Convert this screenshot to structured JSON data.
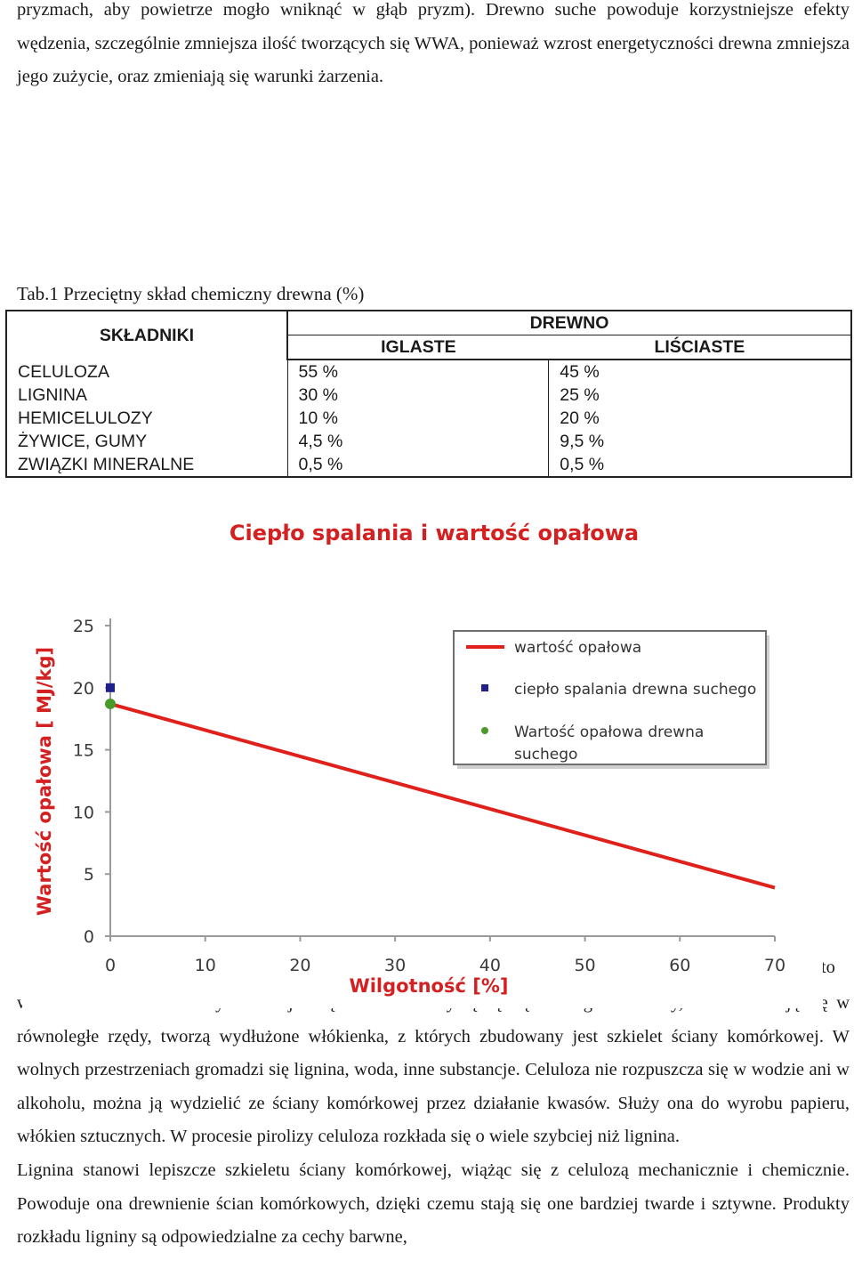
{
  "text": {
    "top_paragraph": "pryzmach, aby powietrze mogło wniknąć w głąb pryzm). Drewno suche powoduje korzystniejsze efekty wędzenia, szczególnie zmniejsza ilość tworzących się WWA, ponieważ wzrost energetyczności drewna zmniejsza jego zużycie, oraz zmieniają się warunki żarzenia.",
    "bottom_paragraph_1": "wielocukier o budowie krystalicznej. Cząsteczki celulozy łączą się w długie łańcuchy, które układają się w równoległe rzędy, tworzą wydłużone włókienka, z których zbudowany jest szkielet ściany komórkowej. W wolnych przestrzeniach gromadzi się lignina, woda, inne substancje. Celuloza nie rozpuszcza się w wodzie ani w alkoholu, można ją wydzielić ze ściany komórkowej przez działanie kwasów. Służy ona do wyrobu papieru, włókien sztucznych. W procesie pirolizy celuloza rozkłada się o wiele szybciej niż lignina.",
    "bottom_paragraph_2": "Lignina stanowi lepiszcze szkieletu ściany komórkowej, wiążąc się z celulozą mechanicznie i chemicznie. Powoduje ona drewnienie ścian komórkowych, dzięki czemu stają się one bardziej twarde i sztywne. Produkty rozkładu ligniny są odpowiedzialne za cechy barwne,",
    "peek_text": "est to"
  },
  "table": {
    "caption": "Tab.1 Przeciętny skład chemiczny drewna (%)",
    "header_components": "SKŁADNIKI",
    "header_wood": "DREWNO",
    "header_conifer": "IGLASTE",
    "header_deciduous": "LIŚCIASTE",
    "rows": [
      {
        "name": "CELULOZA",
        "iglaste": "55 %",
        "lisciaste": "45 %"
      },
      {
        "name": "LIGNINA",
        "iglaste": "30 %",
        "lisciaste": "25 %"
      },
      {
        "name": "HEMICELULOZY",
        "iglaste": "10 %",
        "lisciaste": "20 %"
      },
      {
        "name": "ŻYWICE, GUMY",
        "iglaste": "4,5 %",
        "lisciaste": "9,5 %"
      },
      {
        "name": "ZWIĄZKI MINERALNE",
        "iglaste": "0,5 %",
        "lisciaste": "0,5 %"
      }
    ]
  },
  "chart_data": {
    "type": "line",
    "title": "Ciepło spalania i wartość opałowa",
    "xlabel": "Wilgotność [%]",
    "ylabel": "Wartość opałowa [ MJ/kg]",
    "xlim": [
      0,
      70
    ],
    "ylim": [
      0,
      25
    ],
    "x_ticks": [
      "0",
      "10",
      "20",
      "30",
      "40",
      "50",
      "60",
      "70"
    ],
    "y_ticks": [
      "0",
      "5",
      "10",
      "15",
      "20",
      "25"
    ],
    "grid": false,
    "legend_position": "top-right",
    "series": [
      {
        "name": "wartość opałowa",
        "kind": "line",
        "color": "#e0201b",
        "x": [
          0,
          70
        ],
        "y": [
          18.7,
          3.9
        ]
      },
      {
        "name": "ciepło spalania drewna suchego",
        "kind": "marker",
        "marker": "square",
        "color": "#1f1f8f",
        "x": [
          0
        ],
        "y": [
          20
        ]
      },
      {
        "name": "Wartość opałowa drewna suchego",
        "kind": "marker",
        "marker": "circle",
        "color": "#4a9a2a",
        "x": [
          0
        ],
        "y": [
          18.7
        ]
      }
    ],
    "colors": {
      "title": "#d42020",
      "axis_label": "#d42020",
      "tick": "#3a3a3a",
      "axis": "#9a9a9a"
    }
  }
}
